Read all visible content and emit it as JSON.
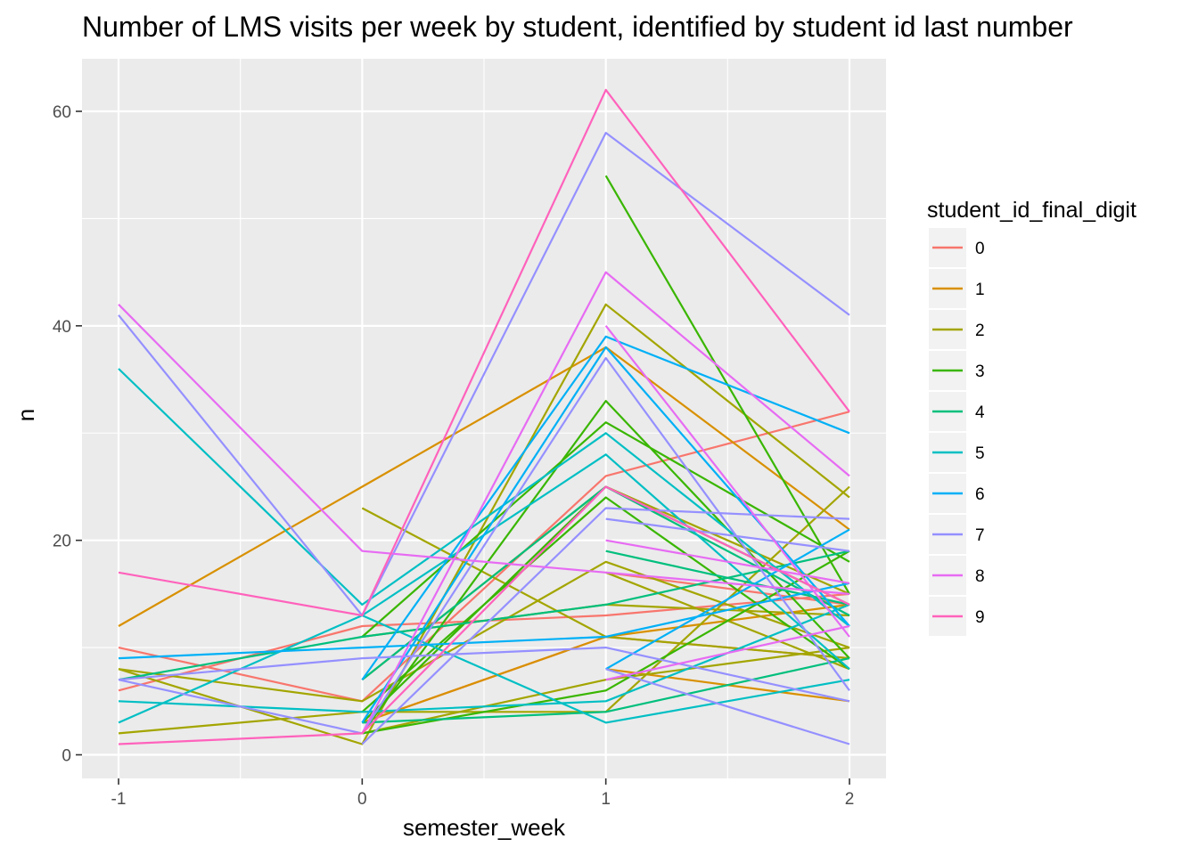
{
  "chart_data": {
    "type": "line",
    "title": "Number of LMS visits per week by student, identified by student id last number",
    "xlabel": "semester_week",
    "ylabel": "n",
    "xlim": [
      -1.15,
      2.15
    ],
    "ylim": [
      -2.2,
      64.9
    ],
    "x_ticks": [
      -1,
      0,
      1,
      2
    ],
    "x_tick_labels": [
      "-1",
      "0",
      "1",
      "2"
    ],
    "y_ticks": [
      0,
      20,
      40,
      60
    ],
    "y_tick_labels": [
      "0",
      "20",
      "40",
      "60"
    ],
    "grid": true,
    "legend": {
      "title": "student_id_final_digit",
      "position": "right",
      "entries": [
        {
          "label": "0",
          "color": "#F8766D"
        },
        {
          "label": "1",
          "color": "#D89000"
        },
        {
          "label": "2",
          "color": "#A3A500"
        },
        {
          "label": "3",
          "color": "#39B600"
        },
        {
          "label": "4",
          "color": "#00BF7D"
        },
        {
          "label": "5",
          "color": "#00BFC4"
        },
        {
          "label": "6",
          "color": "#00B0F6"
        },
        {
          "label": "7",
          "color": "#9590FF"
        },
        {
          "label": "8",
          "color": "#E76BF3"
        },
        {
          "label": "9",
          "color": "#FF62BC"
        }
      ]
    },
    "series": [
      {
        "group": "0",
        "points": [
          [
            -1,
            10
          ],
          [
            0,
            5
          ],
          [
            1,
            26
          ],
          [
            2,
            32
          ]
        ]
      },
      {
        "group": "0",
        "points": [
          [
            -1,
            6
          ],
          [
            0,
            12
          ],
          [
            1,
            13
          ],
          [
            2,
            15
          ]
        ]
      },
      {
        "group": "0",
        "points": [
          [
            0,
            3
          ],
          [
            1,
            11
          ],
          [
            2,
            9
          ]
        ]
      },
      {
        "group": "0",
        "points": [
          [
            1,
            17
          ],
          [
            2,
            14
          ]
        ]
      },
      {
        "group": "1",
        "points": [
          [
            -1,
            12
          ],
          [
            0,
            25
          ],
          [
            1,
            38
          ],
          [
            2,
            21
          ]
        ]
      },
      {
        "group": "1",
        "points": [
          [
            0,
            3
          ],
          [
            1,
            11
          ],
          [
            2,
            14
          ]
        ]
      },
      {
        "group": "1",
        "points": [
          [
            1,
            8
          ],
          [
            2,
            5
          ]
        ]
      },
      {
        "group": "2",
        "points": [
          [
            -1,
            8
          ],
          [
            0,
            1
          ],
          [
            1,
            42
          ],
          [
            2,
            24
          ]
        ]
      },
      {
        "group": "2",
        "points": [
          [
            0,
            23
          ],
          [
            1,
            11
          ],
          [
            2,
            9
          ]
        ]
      },
      {
        "group": "2",
        "points": [
          [
            -1,
            2
          ],
          [
            0,
            4
          ],
          [
            1,
            4
          ],
          [
            2,
            25
          ]
        ]
      },
      {
        "group": "2",
        "points": [
          [
            -1,
            8
          ],
          [
            0,
            5
          ],
          [
            1,
            18
          ],
          [
            2,
            10
          ]
        ]
      },
      {
        "group": "2",
        "points": [
          [
            0,
            7
          ],
          [
            1,
            25
          ],
          [
            2,
            15
          ]
        ]
      },
      {
        "group": "2",
        "points": [
          [
            0,
            11
          ],
          [
            1,
            14
          ],
          [
            2,
            13
          ]
        ]
      },
      {
        "group": "2",
        "points": [
          [
            0,
            2
          ],
          [
            1,
            7
          ],
          [
            2,
            10
          ]
        ]
      },
      {
        "group": "2",
        "points": [
          [
            1,
            17
          ],
          [
            2,
            8
          ]
        ]
      },
      {
        "group": "3",
        "points": [
          [
            0,
            2
          ],
          [
            1,
            33
          ],
          [
            2,
            9
          ]
        ]
      },
      {
        "group": "3",
        "points": [
          [
            0,
            11
          ],
          [
            1,
            31
          ],
          [
            2,
            18
          ]
        ]
      },
      {
        "group": "3",
        "points": [
          [
            1,
            54
          ],
          [
            2,
            15
          ]
        ]
      },
      {
        "group": "3",
        "points": [
          [
            0,
            2
          ],
          [
            1,
            6
          ],
          [
            2,
            19
          ]
        ]
      },
      {
        "group": "3",
        "points": [
          [
            0,
            3
          ],
          [
            1,
            25
          ],
          [
            2,
            14
          ]
        ]
      },
      {
        "group": "3",
        "points": [
          [
            0,
            4
          ],
          [
            1,
            24
          ],
          [
            2,
            8
          ]
        ]
      },
      {
        "group": "4",
        "points": [
          [
            -1,
            7
          ],
          [
            0,
            11
          ],
          [
            1,
            14
          ],
          [
            2,
            19
          ]
        ]
      },
      {
        "group": "4",
        "points": [
          [
            0,
            7
          ],
          [
            1,
            25
          ],
          [
            2,
            13
          ]
        ]
      },
      {
        "group": "4",
        "points": [
          [
            0,
            3
          ],
          [
            1,
            4
          ],
          [
            2,
            9
          ]
        ]
      },
      {
        "group": "4",
        "points": [
          [
            1,
            19
          ],
          [
            2,
            14
          ]
        ]
      },
      {
        "group": "5",
        "points": [
          [
            -1,
            36
          ],
          [
            0,
            14
          ],
          [
            1,
            30
          ],
          [
            2,
            12
          ]
        ]
      },
      {
        "group": "5",
        "points": [
          [
            -1,
            3
          ],
          [
            0,
            13
          ],
          [
            1,
            28
          ],
          [
            2,
            8
          ]
        ]
      },
      {
        "group": "5",
        "points": [
          [
            -1,
            5
          ],
          [
            0,
            4
          ],
          [
            1,
            5
          ],
          [
            2,
            14
          ]
        ]
      },
      {
        "group": "5",
        "points": [
          [
            0,
            13
          ],
          [
            1,
            3
          ],
          [
            2,
            7
          ]
        ]
      },
      {
        "group": "6",
        "points": [
          [
            -1,
            9
          ],
          [
            0,
            10
          ],
          [
            1,
            11
          ],
          [
            2,
            16
          ]
        ]
      },
      {
        "group": "6",
        "points": [
          [
            0,
            7
          ],
          [
            1,
            39
          ],
          [
            2,
            30
          ]
        ]
      },
      {
        "group": "6",
        "points": [
          [
            0,
            3
          ],
          [
            1,
            38
          ],
          [
            2,
            12
          ]
        ]
      },
      {
        "group": "6",
        "points": [
          [
            1,
            8
          ],
          [
            2,
            21
          ]
        ]
      },
      {
        "group": "7",
        "points": [
          [
            -1,
            41
          ],
          [
            0,
            13
          ],
          [
            1,
            58
          ],
          [
            2,
            41
          ]
        ]
      },
      {
        "group": "7",
        "points": [
          [
            -1,
            7
          ],
          [
            0,
            2
          ],
          [
            1,
            37
          ],
          [
            2,
            6
          ]
        ]
      },
      {
        "group": "7",
        "points": [
          [
            -1,
            7
          ],
          [
            0,
            9
          ],
          [
            1,
            10
          ],
          [
            2,
            5
          ]
        ]
      },
      {
        "group": "7",
        "points": [
          [
            0,
            1
          ],
          [
            1,
            23
          ],
          [
            2,
            22
          ]
        ]
      },
      {
        "group": "7",
        "points": [
          [
            1,
            22
          ],
          [
            2,
            19
          ]
        ]
      },
      {
        "group": "7",
        "points": [
          [
            1,
            8
          ],
          [
            2,
            1
          ]
        ]
      },
      {
        "group": "8",
        "points": [
          [
            -1,
            42
          ],
          [
            0,
            19
          ],
          [
            1,
            17
          ],
          [
            2,
            15
          ]
        ]
      },
      {
        "group": "8",
        "points": [
          [
            0,
            2
          ],
          [
            1,
            45
          ],
          [
            2,
            26
          ]
        ]
      },
      {
        "group": "8",
        "points": [
          [
            1,
            40
          ],
          [
            2,
            11
          ]
        ]
      },
      {
        "group": "8",
        "points": [
          [
            1,
            20
          ],
          [
            2,
            16
          ]
        ]
      },
      {
        "group": "8",
        "points": [
          [
            1,
            7
          ],
          [
            2,
            12
          ]
        ]
      },
      {
        "group": "9",
        "points": [
          [
            -1,
            17
          ],
          [
            0,
            13
          ],
          [
            1,
            62
          ],
          [
            2,
            32
          ]
        ]
      },
      {
        "group": "9",
        "points": [
          [
            -1,
            1
          ],
          [
            0,
            2
          ],
          [
            1,
            25
          ],
          [
            2,
            14
          ]
        ]
      }
    ]
  }
}
